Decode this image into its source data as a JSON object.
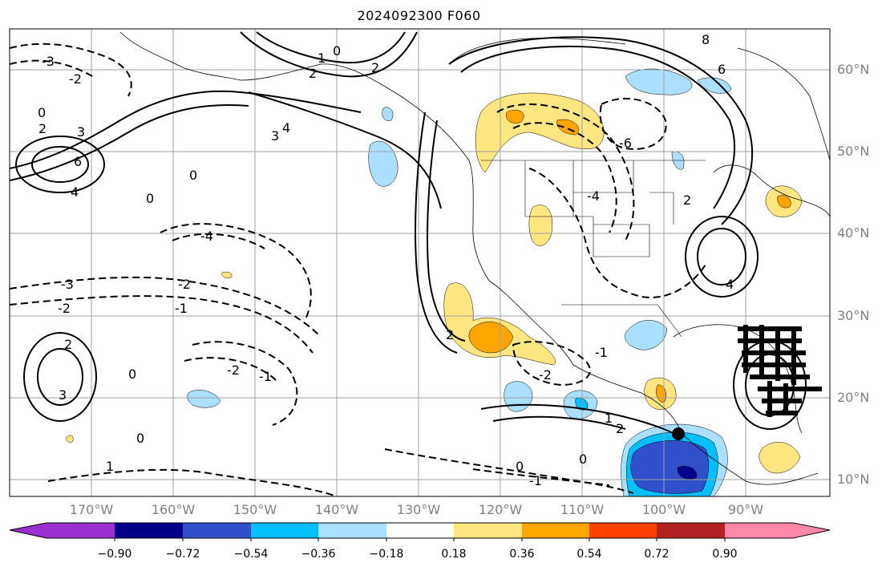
{
  "title": "2024092300 F060",
  "lat_labels": [
    "60°N",
    "50°N",
    "40°N",
    "30°N",
    "20°N",
    "10°N"
  ],
  "lon_labels": [
    "170°W",
    "160°W",
    "150°W",
    "140°W",
    "130°W",
    "120°W",
    "110°W",
    "100°W",
    "90°W"
  ],
  "colorbar": {
    "ticks": [
      "−0.90",
      "−0.72",
      "−0.54",
      "−0.36",
      "−0.18",
      "0.18",
      "0.36",
      "0.54",
      "0.72",
      "0.90"
    ],
    "colors": [
      "#9b30d0",
      "#00008b",
      "#3050cc",
      "#00bfff",
      "#aadfff",
      "#ffffff",
      "#ffe680",
      "#ffa500",
      "#ff4000",
      "#b22222",
      "#ff88aa"
    ]
  },
  "contour_labels": [
    "0",
    "1",
    "2",
    "3",
    "4",
    "6",
    "8",
    "-1",
    "-2",
    "-3",
    "-4",
    "-6"
  ]
}
